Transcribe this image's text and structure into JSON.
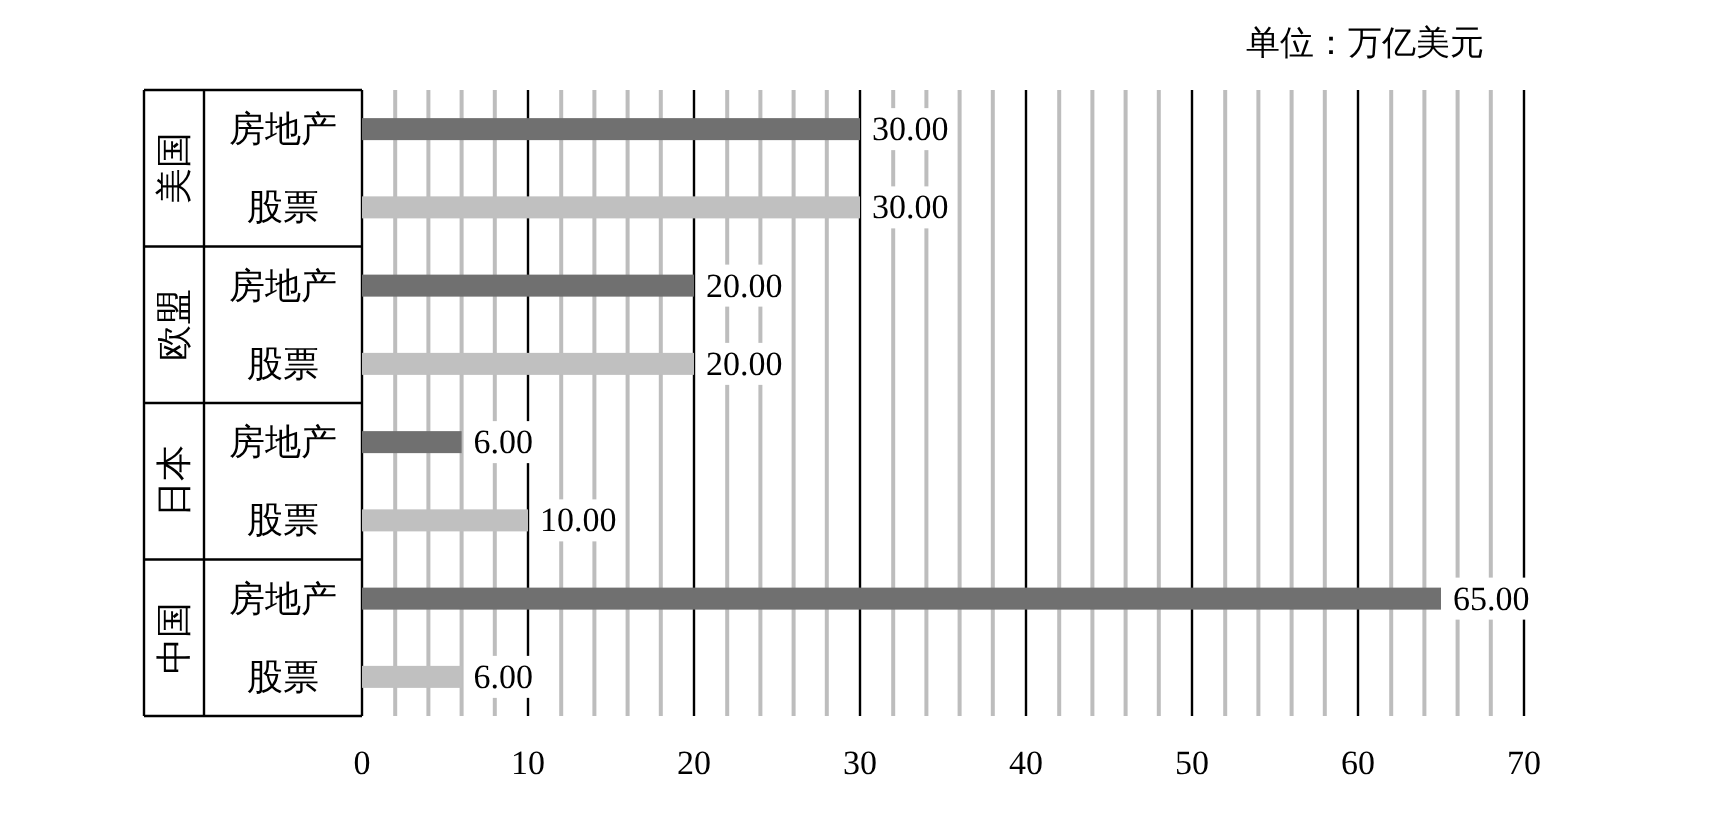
{
  "chart_data": {
    "type": "bar",
    "orientation": "horizontal",
    "categories": [
      "美国",
      "欧盟",
      "日本",
      "中国"
    ],
    "series": [
      {
        "name": "房地产",
        "color": "#707070",
        "values": [
          30,
          20,
          6,
          65
        ],
        "value_labels": [
          "30.00",
          "20.00",
          "6.00",
          "65.00"
        ]
      },
      {
        "name": "股票",
        "color": "#c0c0c0",
        "values": [
          30,
          20,
          10,
          6
        ],
        "value_labels": [
          "30.00",
          "20.00",
          "10.00",
          "6.00"
        ]
      }
    ],
    "xlim": [
      0,
      70
    ],
    "xticks": [
      0,
      {
        "value": 2,
        "label": null
      },
      {
        "value": 4,
        "label": null
      },
      {
        "value": 6,
        "label": null
      },
      {
        "value": 8,
        "label": null
      },
      10,
      {
        "value": 12,
        "label": null
      },
      {
        "value": 14,
        "label": null
      },
      {
        "value": 16,
        "label": null
      },
      {
        "value": 18,
        "label": null
      },
      20,
      {
        "value": 22,
        "label": null
      },
      {
        "value": 24,
        "label": null
      },
      {
        "value": 26,
        "label": null
      },
      {
        "value": 28,
        "label": null
      },
      30,
      {
        "value": 32,
        "label": null
      },
      {
        "value": 34,
        "label": null
      },
      {
        "value": 36,
        "label": null
      },
      {
        "value": 38,
        "label": null
      },
      40,
      {
        "value": 42,
        "label": null
      },
      {
        "value": 44,
        "label": null
      },
      {
        "value": 46,
        "label": null
      },
      {
        "value": 48,
        "label": null
      },
      50,
      {
        "value": 52,
        "label": null
      },
      {
        "value": 54,
        "label": null
      },
      {
        "value": 56,
        "label": null
      },
      {
        "value": 58,
        "label": null
      },
      60,
      {
        "value": 62,
        "label": null
      },
      {
        "value": 64,
        "label": null
      },
      {
        "value": 66,
        "label": null
      },
      {
        "value": 68,
        "label": null
      },
      70
    ],
    "grid": "x",
    "annotations": [
      "单位：万亿美元"
    ]
  }
}
